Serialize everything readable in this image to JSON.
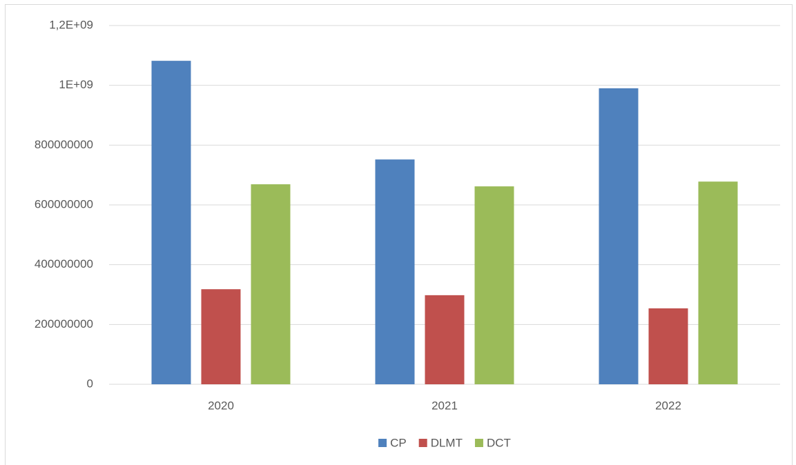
{
  "chart_data": {
    "type": "bar",
    "categories": [
      "2020",
      "2021",
      "2022"
    ],
    "series": [
      {
        "name": "CP",
        "color": "#4f81bd",
        "values": [
          1082000000,
          752000000,
          990000000
        ]
      },
      {
        "name": "DLMT",
        "color": "#c0504d",
        "values": [
          318000000,
          298000000,
          254000000
        ]
      },
      {
        "name": "DCT",
        "color": "#9bbb59",
        "values": [
          669000000,
          662000000,
          678000000
        ]
      }
    ],
    "ylim": [
      0,
      1200000000
    ],
    "yticks": [
      0,
      200000000,
      400000000,
      600000000,
      800000000,
      {
        "value": 1000000000,
        "label": "1E+09"
      },
      {
        "value": 1200000000,
        "label": "1,2E+09"
      }
    ],
    "grid": true,
    "legend": "bottom"
  }
}
